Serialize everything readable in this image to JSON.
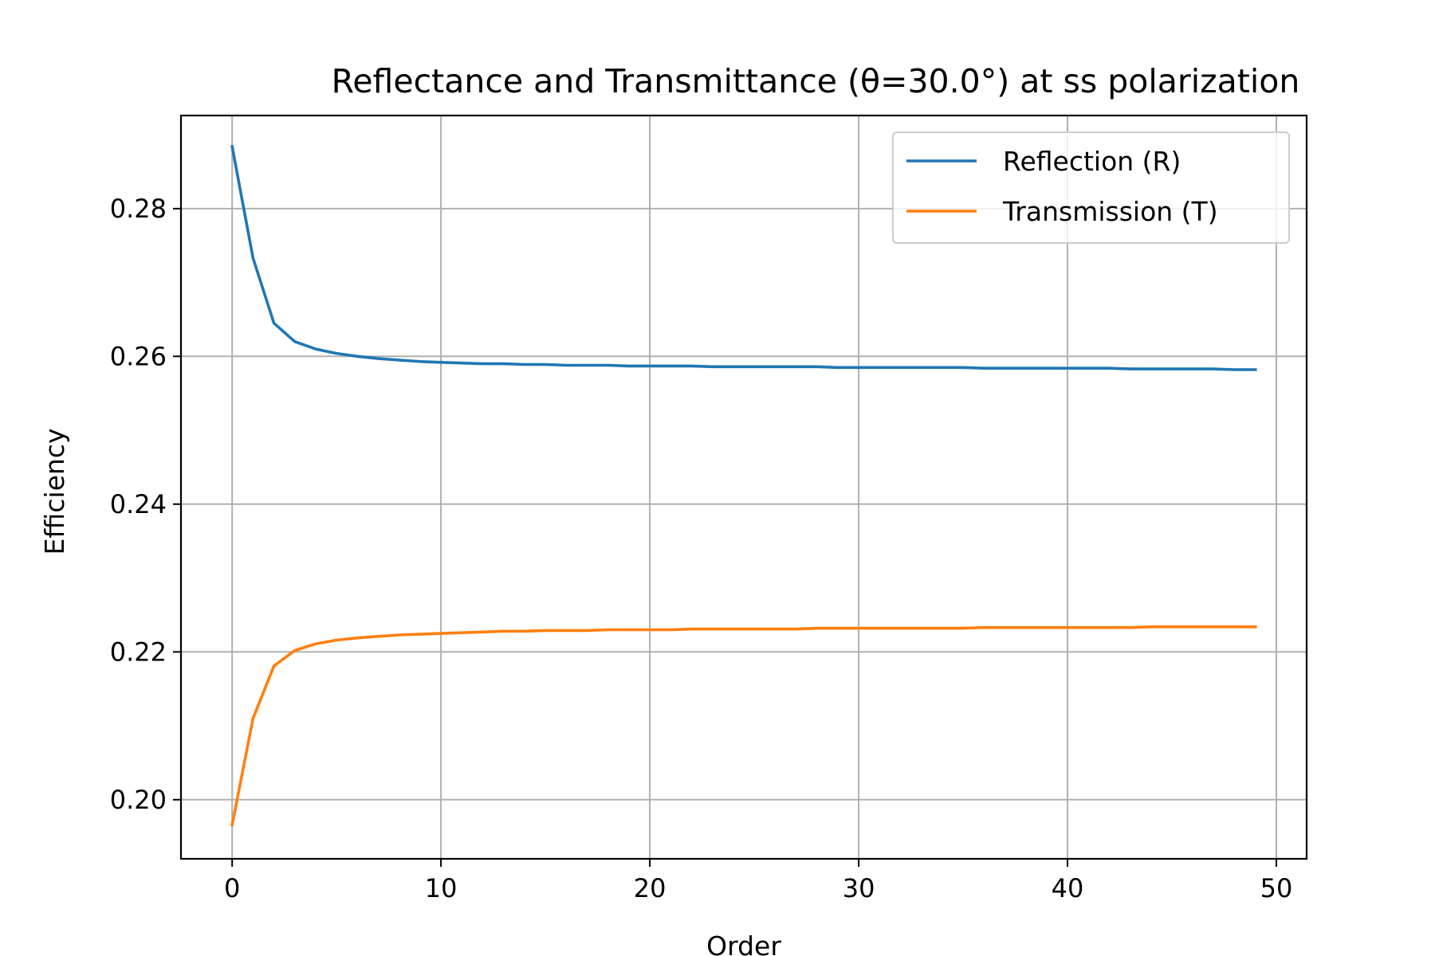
{
  "chart_data": {
    "type": "line",
    "title": "Reflectance and Transmittance (θ=30.0°) at ss polarization",
    "xlabel": "Order",
    "ylabel": "Efficiency",
    "xlim": [
      -2.45,
      51.45
    ],
    "ylim": [
      0.192,
      0.2926
    ],
    "grid": true,
    "legend_position": "upper right",
    "x_ticks": [
      0,
      10,
      20,
      30,
      40,
      50
    ],
    "x_tick_labels": [
      "0",
      "10",
      "20",
      "30",
      "40",
      "50"
    ],
    "y_ticks": [
      0.2,
      0.22,
      0.24,
      0.26,
      0.28
    ],
    "y_tick_labels": [
      "0.20",
      "0.22",
      "0.24",
      "0.26",
      "0.28"
    ],
    "x": [
      0,
      1,
      2,
      3,
      4,
      5,
      6,
      7,
      8,
      9,
      10,
      11,
      12,
      13,
      14,
      15,
      16,
      17,
      18,
      19,
      20,
      21,
      22,
      23,
      24,
      25,
      26,
      27,
      28,
      29,
      30,
      31,
      32,
      33,
      34,
      35,
      36,
      37,
      38,
      39,
      40,
      41,
      42,
      43,
      44,
      45,
      46,
      47,
      48,
      49
    ],
    "series": [
      {
        "name": "Reflection (R)",
        "color": "#1f77b4",
        "values": [
          0.2884,
          0.2733,
          0.2645,
          0.262,
          0.261,
          0.2604,
          0.26,
          0.2597,
          0.2595,
          0.2593,
          0.2592,
          0.2591,
          0.259,
          0.259,
          0.2589,
          0.2589,
          0.2588,
          0.2588,
          0.2588,
          0.2587,
          0.2587,
          0.2587,
          0.2587,
          0.2586,
          0.2586,
          0.2586,
          0.2586,
          0.2586,
          0.2586,
          0.2585,
          0.2585,
          0.2585,
          0.2585,
          0.2585,
          0.2585,
          0.2585,
          0.2584,
          0.2584,
          0.2584,
          0.2584,
          0.2584,
          0.2584,
          0.2584,
          0.2583,
          0.2583,
          0.2583,
          0.2583,
          0.2583,
          0.2582,
          0.2582
        ]
      },
      {
        "name": "Transmission (T)",
        "color": "#ff7f0e",
        "values": [
          0.1966,
          0.211,
          0.2181,
          0.2202,
          0.2211,
          0.2216,
          0.2219,
          0.2221,
          0.2223,
          0.2224,
          0.2225,
          0.2226,
          0.2227,
          0.2228,
          0.2228,
          0.2229,
          0.2229,
          0.2229,
          0.223,
          0.223,
          0.223,
          0.223,
          0.2231,
          0.2231,
          0.2231,
          0.2231,
          0.2231,
          0.2231,
          0.2232,
          0.2232,
          0.2232,
          0.2232,
          0.2232,
          0.2232,
          0.2232,
          0.2232,
          0.2233,
          0.2233,
          0.2233,
          0.2233,
          0.2233,
          0.2233,
          0.2233,
          0.2233,
          0.2234,
          0.2234,
          0.2234,
          0.2234,
          0.2234,
          0.2234
        ]
      }
    ]
  }
}
